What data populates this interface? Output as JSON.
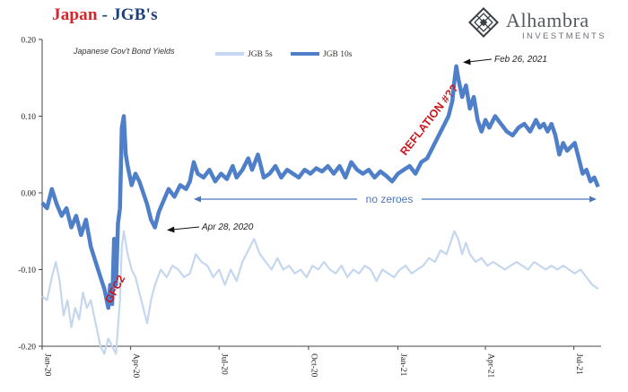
{
  "header": {
    "country": "Japan",
    "separator": " - ",
    "series_title": "JGB's"
  },
  "logo": {
    "name": "Alhambra",
    "subtitle": "INVESTMENTS",
    "icon": "diamond-lattice-icon"
  },
  "colors": {
    "jgb10s": "#4f7fc8",
    "jgb5s": "#c5d7ee",
    "title_red": "#d9232a",
    "annotation_red": "#c8161d",
    "no_zeroes": "#4a78bf"
  },
  "chart_data": {
    "type": "line",
    "title": "Japan - JGB's",
    "subtitle": "Japanese Gov't Bond Yields",
    "xlabel": "",
    "ylabel": "",
    "ylim": [
      -0.2,
      0.2
    ],
    "yticks": [
      "0.20",
      "0.10",
      "0.00",
      "-0.10",
      "-0.20"
    ],
    "ytick_values": [
      0.2,
      0.1,
      0.0,
      -0.1,
      -0.2
    ],
    "x_range": [
      "2020-01-01",
      "2021-07-31"
    ],
    "xticks": [
      "Jan-20",
      "Apr-20",
      "Jul-20",
      "Oct-20",
      "Jan-21",
      "Apr-21",
      "Jul-21"
    ],
    "xtick_days": [
      0,
      91,
      182,
      274,
      366,
      456,
      547
    ],
    "legend": [
      "JGB 5s",
      "JGB 10s"
    ],
    "legend_position": "top-center",
    "series": [
      {
        "name": "JGB 10s",
        "points": [
          [
            0,
            -0.013
          ],
          [
            5,
            -0.02
          ],
          [
            10,
            0.005
          ],
          [
            15,
            -0.015
          ],
          [
            20,
            -0.03
          ],
          [
            25,
            -0.02
          ],
          [
            30,
            -0.045
          ],
          [
            35,
            -0.03
          ],
          [
            40,
            -0.055
          ],
          [
            45,
            -0.035
          ],
          [
            50,
            -0.07
          ],
          [
            55,
            -0.09
          ],
          [
            60,
            -0.11
          ],
          [
            64,
            -0.125
          ],
          [
            68,
            -0.15
          ],
          [
            70,
            -0.12
          ],
          [
            72,
            -0.145
          ],
          [
            74,
            -0.06
          ],
          [
            76,
            -0.12
          ],
          [
            78,
            -0.04
          ],
          [
            80,
            -0.02
          ],
          [
            82,
            0.085
          ],
          [
            84,
            0.1
          ],
          [
            86,
            0.05
          ],
          [
            88,
            0.035
          ],
          [
            92,
            0.01
          ],
          [
            96,
            0.025
          ],
          [
            100,
            0.015
          ],
          [
            104,
            0.0
          ],
          [
            108,
            -0.015
          ],
          [
            112,
            -0.035
          ],
          [
            116,
            -0.045
          ],
          [
            120,
            -0.025
          ],
          [
            125,
            -0.01
          ],
          [
            130,
            0.005
          ],
          [
            136,
            -0.005
          ],
          [
            142,
            0.01
          ],
          [
            148,
            0.005
          ],
          [
            152,
            0.015
          ],
          [
            156,
            0.04
          ],
          [
            160,
            0.025
          ],
          [
            166,
            0.02
          ],
          [
            172,
            0.03
          ],
          [
            178,
            0.015
          ],
          [
            184,
            0.025
          ],
          [
            190,
            0.018
          ],
          [
            196,
            0.035
          ],
          [
            200,
            0.02
          ],
          [
            206,
            0.03
          ],
          [
            212,
            0.045
          ],
          [
            216,
            0.03
          ],
          [
            222,
            0.05
          ],
          [
            228,
            0.02
          ],
          [
            234,
            0.025
          ],
          [
            240,
            0.035
          ],
          [
            246,
            0.02
          ],
          [
            252,
            0.03
          ],
          [
            258,
            0.025
          ],
          [
            264,
            0.02
          ],
          [
            270,
            0.03
          ],
          [
            276,
            0.025
          ],
          [
            282,
            0.032
          ],
          [
            288,
            0.028
          ],
          [
            294,
            0.035
          ],
          [
            300,
            0.025
          ],
          [
            306,
            0.035
          ],
          [
            312,
            0.02
          ],
          [
            318,
            0.04
          ],
          [
            324,
            0.03
          ],
          [
            330,
            0.025
          ],
          [
            336,
            0.03
          ],
          [
            342,
            0.02
          ],
          [
            348,
            0.028
          ],
          [
            354,
            0.022
          ],
          [
            360,
            0.015
          ],
          [
            366,
            0.025
          ],
          [
            372,
            0.03
          ],
          [
            378,
            0.035
          ],
          [
            384,
            0.025
          ],
          [
            390,
            0.04
          ],
          [
            396,
            0.045
          ],
          [
            402,
            0.06
          ],
          [
            408,
            0.075
          ],
          [
            414,
            0.09
          ],
          [
            418,
            0.1
          ],
          [
            422,
            0.12
          ],
          [
            424,
            0.145
          ],
          [
            426,
            0.165
          ],
          [
            428,
            0.15
          ],
          [
            432,
            0.125
          ],
          [
            436,
            0.14
          ],
          [
            440,
            0.11
          ],
          [
            444,
            0.125
          ],
          [
            448,
            0.095
          ],
          [
            452,
            0.08
          ],
          [
            456,
            0.095
          ],
          [
            460,
            0.085
          ],
          [
            466,
            0.1
          ],
          [
            472,
            0.09
          ],
          [
            478,
            0.08
          ],
          [
            484,
            0.075
          ],
          [
            490,
            0.085
          ],
          [
            496,
            0.09
          ],
          [
            502,
            0.08
          ],
          [
            508,
            0.095
          ],
          [
            512,
            0.085
          ],
          [
            516,
            0.09
          ],
          [
            520,
            0.08
          ],
          [
            524,
            0.09
          ],
          [
            528,
            0.075
          ],
          [
            532,
            0.05
          ],
          [
            536,
            0.065
          ],
          [
            540,
            0.055
          ],
          [
            544,
            0.06
          ],
          [
            548,
            0.065
          ],
          [
            552,
            0.045
          ],
          [
            556,
            0.025
          ],
          [
            560,
            0.03
          ],
          [
            564,
            0.015
          ],
          [
            568,
            0.02
          ],
          [
            572,
            0.008
          ]
        ]
      },
      {
        "name": "JGB 5s",
        "points": [
          [
            0,
            -0.135
          ],
          [
            5,
            -0.14
          ],
          [
            10,
            -0.11
          ],
          [
            14,
            -0.09
          ],
          [
            18,
            -0.115
          ],
          [
            22,
            -0.16
          ],
          [
            26,
            -0.14
          ],
          [
            30,
            -0.175
          ],
          [
            34,
            -0.15
          ],
          [
            38,
            -0.165
          ],
          [
            42,
            -0.13
          ],
          [
            46,
            -0.15
          ],
          [
            50,
            -0.14
          ],
          [
            55,
            -0.17
          ],
          [
            60,
            -0.2
          ],
          [
            64,
            -0.21
          ],
          [
            68,
            -0.19
          ],
          [
            72,
            -0.2
          ],
          [
            76,
            -0.21
          ],
          [
            80,
            -0.14
          ],
          [
            82,
            -0.07
          ],
          [
            84,
            -0.05
          ],
          [
            88,
            -0.08
          ],
          [
            92,
            -0.1
          ],
          [
            96,
            -0.11
          ],
          [
            100,
            -0.13
          ],
          [
            104,
            -0.15
          ],
          [
            108,
            -0.17
          ],
          [
            112,
            -0.14
          ],
          [
            116,
            -0.12
          ],
          [
            122,
            -0.1
          ],
          [
            128,
            -0.11
          ],
          [
            134,
            -0.095
          ],
          [
            140,
            -0.1
          ],
          [
            146,
            -0.11
          ],
          [
            152,
            -0.105
          ],
          [
            158,
            -0.08
          ],
          [
            164,
            -0.09
          ],
          [
            170,
            -0.095
          ],
          [
            176,
            -0.11
          ],
          [
            182,
            -0.1
          ],
          [
            188,
            -0.12
          ],
          [
            194,
            -0.1
          ],
          [
            200,
            -0.115
          ],
          [
            206,
            -0.09
          ],
          [
            212,
            -0.075
          ],
          [
            218,
            -0.06
          ],
          [
            224,
            -0.08
          ],
          [
            230,
            -0.09
          ],
          [
            236,
            -0.1
          ],
          [
            242,
            -0.085
          ],
          [
            248,
            -0.1
          ],
          [
            254,
            -0.095
          ],
          [
            260,
            -0.105
          ],
          [
            266,
            -0.1
          ],
          [
            272,
            -0.11
          ],
          [
            278,
            -0.095
          ],
          [
            284,
            -0.1
          ],
          [
            290,
            -0.09
          ],
          [
            296,
            -0.1
          ],
          [
            302,
            -0.105
          ],
          [
            308,
            -0.095
          ],
          [
            314,
            -0.11
          ],
          [
            320,
            -0.1
          ],
          [
            326,
            -0.105
          ],
          [
            332,
            -0.095
          ],
          [
            338,
            -0.1
          ],
          [
            344,
            -0.115
          ],
          [
            350,
            -0.1
          ],
          [
            356,
            -0.105
          ],
          [
            362,
            -0.11
          ],
          [
            368,
            -0.1
          ],
          [
            374,
            -0.095
          ],
          [
            380,
            -0.105
          ],
          [
            386,
            -0.1
          ],
          [
            392,
            -0.095
          ],
          [
            398,
            -0.085
          ],
          [
            404,
            -0.09
          ],
          [
            410,
            -0.075
          ],
          [
            416,
            -0.08
          ],
          [
            420,
            -0.065
          ],
          [
            424,
            -0.05
          ],
          [
            428,
            -0.06
          ],
          [
            432,
            -0.08
          ],
          [
            436,
            -0.065
          ],
          [
            440,
            -0.08
          ],
          [
            446,
            -0.09
          ],
          [
            452,
            -0.085
          ],
          [
            458,
            -0.095
          ],
          [
            464,
            -0.09
          ],
          [
            470,
            -0.095
          ],
          [
            476,
            -0.1
          ],
          [
            482,
            -0.095
          ],
          [
            488,
            -0.09
          ],
          [
            494,
            -0.095
          ],
          [
            500,
            -0.1
          ],
          [
            506,
            -0.09
          ],
          [
            512,
            -0.095
          ],
          [
            518,
            -0.1
          ],
          [
            524,
            -0.095
          ],
          [
            530,
            -0.1
          ],
          [
            536,
            -0.095
          ],
          [
            542,
            -0.1
          ],
          [
            548,
            -0.105
          ],
          [
            554,
            -0.1
          ],
          [
            560,
            -0.11
          ],
          [
            566,
            -0.12
          ],
          [
            572,
            -0.125
          ]
        ]
      }
    ],
    "annotations": [
      {
        "text": "Apr 28, 2020",
        "day": 118,
        "value": -0.045
      },
      {
        "text": "Feb 26, 2021",
        "day": 422,
        "value": 0.165
      },
      {
        "text": "REFLATION #??",
        "day": 405,
        "value": 0.1
      },
      {
        "text": "GFC2",
        "day": 70,
        "value": -0.125
      },
      {
        "text": "no zeroes",
        "from_day": 171,
        "to_day": 572,
        "value": -0.01
      }
    ]
  }
}
